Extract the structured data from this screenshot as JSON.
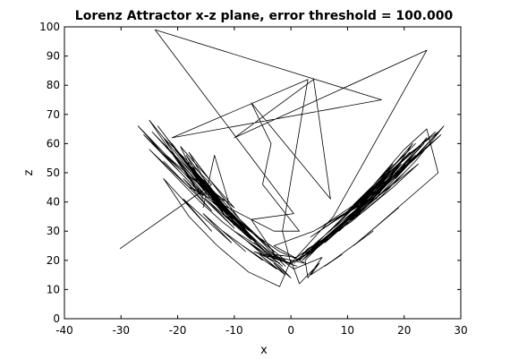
{
  "chart_data": {
    "type": "line",
    "title": "Lorenz Attractor x-z plane, error threshold = 100.000",
    "xlabel": "x",
    "ylabel": "z",
    "xlim": [
      -40,
      30
    ],
    "ylim": [
      0,
      100
    ],
    "xticks": [
      -40,
      -30,
      -20,
      -10,
      0,
      10,
      20,
      30
    ],
    "yticks": [
      0,
      10,
      20,
      30,
      40,
      50,
      60,
      70,
      80,
      90,
      100
    ],
    "grid": false,
    "line_color": "#000000",
    "series": [
      {
        "x": [
          -30.2,
          -14.0,
          -22.5,
          -15.5,
          -25.0,
          -15.0,
          -21.0,
          -12.5,
          -18.0,
          -9.0,
          -20.5,
          -13.0,
          -19.0,
          -10.5,
          -17.5,
          -8.5,
          -16.0,
          -11.5,
          -23.5,
          -14.5,
          -18.5,
          -9.5,
          -15.5,
          -6.5,
          -17.0,
          -12.0,
          -21.5,
          -13.5,
          -24.5,
          -16.5,
          -19.5,
          -10.0,
          -14.0,
          -6.0,
          -13.0,
          -18.0,
          -10.0,
          -15.0,
          -7.0,
          -12.0,
          -5.0,
          -10.0,
          -4.0,
          -8.0,
          -2.0,
          -6.5,
          1.0,
          -4.5,
          2.5,
          -3.0,
          4.0,
          9.5,
          3.5,
          12.0,
          5.0,
          15.0,
          8.0,
          14.0,
          6.5,
          17.5,
          10.5,
          19.0,
          12.5,
          21.0,
          14.5,
          17.5,
          9.0,
          16.0,
          11.0,
          20.0,
          13.5,
          18.0,
          8.5,
          15.5,
          10.0,
          19.5,
          12.0,
          16.5,
          7.5,
          22.0,
          14.0,
          25.5,
          16.0,
          21.0,
          11.0,
          18.0,
          9.5,
          15.5,
          13.0,
          9.0,
          16.0,
          11.0,
          6.0,
          12.0,
          8.0,
          4.0,
          9.0,
          5.0,
          2.0,
          7.0,
          3.5,
          0.5,
          5.0,
          2.0,
          3.0,
          10.5,
          16.0,
          22.0,
          27.0,
          18.5,
          24.0,
          13.5,
          20.5,
          26.0,
          15.0,
          21.5,
          10.0,
          16.5,
          6.5,
          12.0,
          4.0,
          8.5,
          2.5,
          3.0,
          5.5,
          0.5,
          -3.5,
          -6.0,
          -9.5,
          -15.0,
          -22.0,
          -27.0,
          -19.5,
          -25.5,
          -15.5,
          -21.0,
          -11.5,
          -17.0,
          -8.0,
          -13.0,
          -5.5,
          -9.5,
          -3.0,
          -6.5,
          -1.5,
          -4.0,
          0.0,
          2.5,
          5.0,
          8.5,
          12.5,
          17.0,
          22.0,
          26.5,
          18.0,
          23.5,
          14.0,
          19.5,
          10.5,
          16.0,
          8.0,
          12.5,
          6.0,
          9.5,
          4.0,
          7.0,
          3.0,
          4.5,
          2.0,
          1.0,
          5.0,
          10.0,
          15.0,
          20.0,
          24.0,
          17.5,
          22.0,
          13.0,
          18.0,
          9.5,
          14.5,
          7.0,
          11.0,
          5.0,
          8.0,
          3.0,
          5.0,
          1.5,
          -2.0,
          -5.0,
          -8.0,
          -12.0,
          -17.0,
          -22.0,
          -26.0,
          -19.0,
          -24.0,
          -15.0,
          -20.0,
          -11.0,
          -16.0,
          -8.0,
          -12.5,
          -5.5,
          -9.0,
          -3.0,
          -6.0,
          -1.0,
          -3.0,
          1.0,
          4.0,
          8.0,
          13.0,
          18.0,
          22.5,
          15.5,
          20.0,
          11.5,
          16.5,
          8.5,
          13.0,
          6.0,
          10.0,
          4.5,
          7.0,
          3.0,
          5.0,
          2.0,
          12.0,
          20.0,
          24.0,
          26.0,
          13.5,
          19.0,
          11.0,
          14.5,
          6.0,
          9.0,
          3.5,
          5.0,
          1.5,
          0.0,
          -2.0,
          -7.5,
          -13.0,
          -18.0,
          -22.5,
          -14.0,
          -19.0,
          -10.5,
          -15.5,
          -8.0,
          -12.0,
          -5.0,
          -8.5,
          -2.5,
          -5.5,
          -1.0,
          -3.0,
          0.0,
          -2.0,
          -5.0,
          -8.0,
          -12.0,
          -16.0,
          -21.0,
          -25.0,
          -18.0,
          -22.5,
          -14.0,
          -19.0,
          -10.0,
          -15.0,
          -7.0,
          -11.0,
          -4.5,
          -7.5,
          -2.0,
          -4.0,
          -1.0,
          -2.5,
          -7.0,
          0.5,
          -24.0,
          16.0,
          -21.0,
          3.0,
          -1.5,
          0.0,
          7.5,
          24.0,
          -10.0,
          4.0,
          7.0,
          -7.0,
          -3.5,
          -5.0,
          1.5,
          -3.0,
          -18.0,
          -11.0,
          -13.5,
          -15.5
        ],
        "z": [
          24.0,
          46.0,
          62.0,
          41.0,
          68.0,
          44.0,
          60.0,
          38.0,
          57.0,
          34.0,
          58.0,
          40.0,
          55.0,
          36.0,
          52.0,
          31.0,
          48.0,
          35.0,
          66.0,
          43.0,
          56.0,
          33.0,
          46.0,
          27.0,
          50.0,
          37.0,
          61.0,
          42.0,
          64.0,
          47.0,
          59.0,
          38.0,
          44.0,
          26.0,
          39.0,
          53.0,
          32.0,
          45.0,
          28.0,
          36.0,
          24.0,
          30.0,
          21.0,
          27.0,
          19.0,
          23.0,
          18.0,
          22.0,
          19.0,
          25.0,
          30.0,
          36.0,
          28.0,
          39.0,
          31.0,
          44.0,
          34.0,
          41.0,
          32.0,
          47.0,
          37.0,
          52.0,
          40.0,
          57.0,
          43.0,
          50.0,
          35.0,
          48.0,
          38.0,
          55.0,
          42.0,
          53.0,
          33.0,
          46.0,
          36.0,
          54.0,
          39.0,
          49.0,
          31.0,
          60.0,
          44.0,
          64.0,
          48.0,
          58.0,
          39.0,
          51.0,
          35.0,
          46.0,
          40.0,
          32.0,
          43.0,
          35.0,
          27.0,
          37.0,
          30.0,
          24.0,
          32.0,
          26.0,
          20.0,
          28.0,
          23.0,
          19.0,
          25.0,
          22.0,
          24.0,
          33.0,
          42.0,
          54.0,
          66.0,
          48.0,
          62.0,
          39.0,
          56.0,
          64.0,
          41.0,
          60.0,
          34.0,
          47.0,
          28.0,
          38.0,
          23.0,
          32.0,
          20.0,
          14.0,
          21.0,
          17.0,
          23.0,
          28.0,
          34.0,
          44.0,
          56.0,
          66.0,
          50.0,
          62.0,
          42.0,
          57.0,
          35.0,
          48.0,
          29.0,
          40.0,
          25.0,
          33.0,
          21.0,
          26.0,
          18.0,
          22.0,
          19.0,
          22.0,
          26.0,
          32.0,
          38.0,
          46.0,
          55.0,
          63.0,
          49.0,
          60.0,
          40.0,
          53.0,
          34.0,
          45.0,
          30.0,
          39.0,
          27.0,
          33.0,
          24.0,
          29.0,
          22.0,
          25.0,
          21.0,
          20.0,
          27.0,
          35.0,
          43.0,
          52.0,
          59.0,
          47.0,
          56.0,
          38.0,
          49.0,
          33.0,
          43.0,
          29.0,
          36.0,
          26.0,
          31.0,
          23.0,
          26.0,
          20.0,
          23.0,
          27.0,
          31.0,
          37.0,
          45.0,
          55.0,
          63.0,
          50.0,
          60.0,
          42.0,
          54.0,
          36.0,
          47.0,
          31.0,
          40.0,
          27.0,
          34.0,
          23.0,
          28.0,
          20.0,
          22.0,
          21.0,
          25.0,
          30.0,
          37.0,
          45.0,
          53.0,
          42.0,
          50.0,
          35.0,
          45.0,
          30.0,
          38.0,
          26.0,
          33.0,
          24.0,
          28.0,
          22.0,
          25.0,
          21.0,
          40.0,
          58.0,
          65.0,
          50.0,
          29.0,
          38.0,
          25.0,
          30.0,
          18.0,
          22.0,
          15.0,
          19.0,
          12.0,
          20.0,
          11.0,
          16.0,
          25.0,
          35.0,
          48.0,
          30.0,
          41.0,
          26.0,
          36.0,
          23.0,
          30.0,
          20.0,
          25.0,
          17.0,
          22.0,
          15.0,
          19.0,
          14.0,
          18.0,
          22.0,
          27.0,
          33.0,
          40.0,
          50.0,
          58.0,
          45.0,
          54.0,
          37.0,
          48.0,
          31.0,
          41.0,
          27.0,
          35.0,
          23.0,
          29.0,
          20.0,
          24.0,
          18.0,
          21.0,
          34.0,
          36.0,
          99.0,
          75.0,
          62.0,
          82.0,
          30.0,
          19.0,
          35.0,
          92.0,
          62.0,
          82.0,
          41.0,
          74.0,
          60.0,
          46.0,
          30.0,
          30.0,
          45.0,
          40.0,
          56.0,
          38.0
        ]
      }
    ]
  }
}
